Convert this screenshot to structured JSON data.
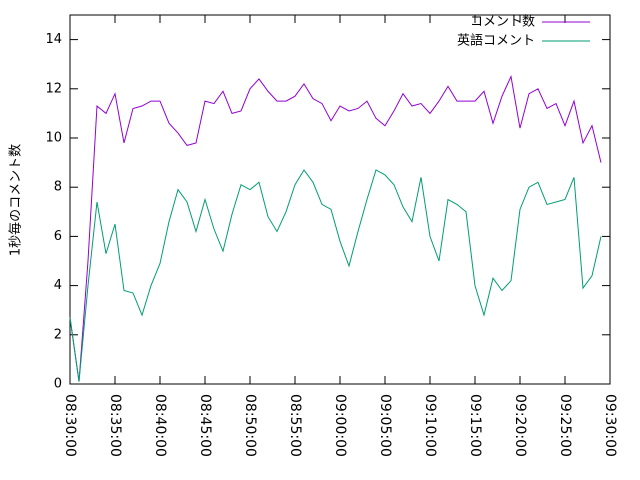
{
  "chart_data": {
    "type": "line",
    "ylabel": "1秒毎のコメント数",
    "x": [
      "08:30:00",
      "08:31:00",
      "08:32:00",
      "08:33:00",
      "08:34:00",
      "08:35:00",
      "08:36:00",
      "08:37:00",
      "08:38:00",
      "08:39:00",
      "08:40:00",
      "08:41:00",
      "08:42:00",
      "08:43:00",
      "08:44:00",
      "08:45:00",
      "08:46:00",
      "08:47:00",
      "08:48:00",
      "08:49:00",
      "08:50:00",
      "08:51:00",
      "08:52:00",
      "08:53:00",
      "08:54:00",
      "08:55:00",
      "08:56:00",
      "08:57:00",
      "08:58:00",
      "08:59:00",
      "09:00:00",
      "09:01:00",
      "09:02:00",
      "09:03:00",
      "09:04:00",
      "09:05:00",
      "09:06:00",
      "09:07:00",
      "09:08:00",
      "09:09:00",
      "09:10:00",
      "09:11:00",
      "09:12:00",
      "09:13:00",
      "09:14:00",
      "09:15:00",
      "09:16:00",
      "09:17:00",
      "09:18:00",
      "09:19:00",
      "09:20:00",
      "09:21:00",
      "09:22:00",
      "09:23:00",
      "09:24:00",
      "09:25:00",
      "09:26:00",
      "09:27:00",
      "09:28:00",
      "09:29:00"
    ],
    "series": [
      {
        "name": "コメント数",
        "color": "#9400d3",
        "values": [
          2.7,
          0.1,
          5.0,
          11.3,
          11.0,
          11.8,
          9.8,
          11.2,
          11.3,
          11.5,
          11.5,
          10.6,
          10.2,
          9.7,
          9.8,
          11.5,
          11.4,
          11.9,
          11.0,
          11.1,
          12.0,
          12.4,
          11.9,
          11.5,
          11.5,
          11.7,
          12.2,
          11.6,
          11.4,
          10.7,
          11.3,
          11.1,
          11.2,
          11.5,
          10.8,
          10.5,
          11.1,
          11.8,
          11.3,
          11.4,
          11.0,
          11.5,
          12.1,
          11.5,
          11.5,
          11.5,
          11.9,
          10.6,
          11.7,
          12.5,
          10.4,
          11.8,
          12.0,
          11.2,
          11.4,
          10.5,
          11.5,
          9.8,
          10.5,
          9.0
        ]
      },
      {
        "name": "英語コメント",
        "color": "#009e73",
        "values": [
          2.7,
          0.1,
          4.0,
          7.4,
          5.3,
          6.5,
          3.8,
          3.7,
          2.8,
          4.0,
          4.9,
          6.6,
          7.9,
          7.4,
          6.2,
          7.5,
          6.3,
          5.4,
          6.9,
          8.1,
          7.9,
          8.2,
          6.8,
          6.2,
          7.0,
          8.1,
          8.7,
          8.2,
          7.3,
          7.1,
          5.8,
          4.8,
          6.2,
          7.5,
          8.7,
          8.5,
          8.1,
          7.2,
          6.6,
          8.4,
          6.0,
          5.0,
          7.5,
          7.3,
          7.0,
          4.0,
          2.8,
          4.3,
          3.8,
          4.2,
          7.1,
          8.0,
          8.2,
          7.3,
          7.4,
          7.5,
          8.4,
          3.9,
          4.4,
          6.0
        ]
      }
    ],
    "xlim": [
      "08:30:00",
      "09:30:00"
    ],
    "xticks": [
      "08:30:00",
      "08:35:00",
      "08:40:00",
      "08:45:00",
      "08:50:00",
      "08:55:00",
      "09:00:00",
      "09:05:00",
      "09:10:00",
      "09:15:00",
      "09:20:00",
      "09:25:00",
      "09:30:00"
    ],
    "ylim": [
      0,
      15
    ],
    "yticks": [
      0,
      2,
      4,
      6,
      8,
      10,
      12,
      14
    ],
    "legend": "top-right"
  }
}
